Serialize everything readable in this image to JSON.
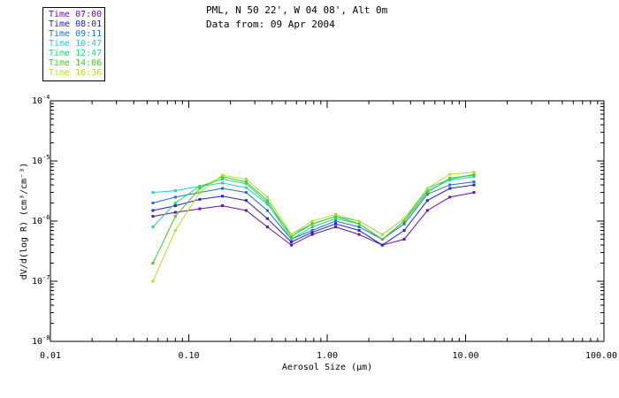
{
  "header": {
    "location": "PML, N 50 22', W 04 08', Alt 0m",
    "date_line": "Data from: 09 Apr 2004"
  },
  "legend": [
    {
      "label": "Time 07:00",
      "color": "#6a0dad"
    },
    {
      "label": "Time 08:01",
      "color": "#2222cc"
    },
    {
      "label": "Time 09:11",
      "color": "#1f6fd6"
    },
    {
      "label": "Time 10:47",
      "color": "#22ccdd"
    },
    {
      "label": "Time 12:47",
      "color": "#22dd77"
    },
    {
      "label": "Time 14:06",
      "color": "#44cc22"
    },
    {
      "label": "Time 16:36",
      "color": "#bbdd22"
    }
  ],
  "chart_data": {
    "type": "line",
    "x_scale": "log",
    "y_scale": "log",
    "xlabel": "Aerosol Size (µm)",
    "ylabel": "dV/d(log R)  (cm³/cm⁻³)",
    "xlim": [
      0.01,
      100
    ],
    "ylim": [
      1e-08,
      0.0001
    ],
    "x_ticks": [
      "0.01",
      "0.10",
      "1.00",
      "10.00",
      "100.00"
    ],
    "y_tick_exponents": [
      "-8",
      "-7",
      "-6",
      "-5",
      "-4"
    ],
    "x": [
      0.055,
      0.08,
      0.12,
      0.175,
      0.26,
      0.37,
      0.55,
      0.78,
      1.15,
      1.7,
      2.5,
      3.6,
      5.3,
      7.7,
      11.5
    ],
    "series": [
      {
        "name": "Time 07:00",
        "color": "#6a0dad",
        "values": [
          1.2e-06,
          1.4e-06,
          1.6e-06,
          1.8e-06,
          1.5e-06,
          8e-07,
          4e-07,
          6e-07,
          8e-07,
          6e-07,
          4e-07,
          5e-07,
          1.5e-06,
          2.5e-06,
          3e-06
        ]
      },
      {
        "name": "Time 08:01",
        "color": "#2222cc",
        "values": [
          1.5e-06,
          1.8e-06,
          2.3e-06,
          2.6e-06,
          2.2e-06,
          1.1e-06,
          4.5e-07,
          6.5e-07,
          9e-07,
          7e-07,
          4e-07,
          7e-07,
          2.2e-06,
          3.5e-06,
          4e-06
        ]
      },
      {
        "name": "Time 09:11",
        "color": "#1f6fd6",
        "values": [
          2e-06,
          2.5e-06,
          3e-06,
          3.5e-06,
          3e-06,
          1.5e-06,
          5e-07,
          7e-07,
          1e-06,
          8e-07,
          5e-07,
          9e-07,
          2.8e-06,
          4e-06,
          4.5e-06
        ]
      },
      {
        "name": "Time 10:47",
        "color": "#22ccdd",
        "values": [
          3e-06,
          3.2e-06,
          3.8e-06,
          4.3e-06,
          3.6e-06,
          1.9e-06,
          6e-07,
          9e-07,
          1.2e-06,
          1e-06,
          6e-07,
          1.1e-06,
          3.2e-06,
          4.8e-06,
          5.5e-06
        ]
      },
      {
        "name": "Time 12:47",
        "color": "#22dd77",
        "values": [
          8e-07,
          2e-06,
          3.8e-06,
          5e-06,
          4.2e-06,
          2e-06,
          5e-07,
          8e-07,
          1.1e-06,
          9e-07,
          5e-07,
          1e-06,
          3.5e-06,
          5e-06,
          6e-06
        ]
      },
      {
        "name": "Time 14:06",
        "color": "#44cc22",
        "values": [
          2e-07,
          1.2e-06,
          3.5e-06,
          5.5e-06,
          4.5e-06,
          2.2e-06,
          5.5e-07,
          9e-07,
          1.2e-06,
          9e-07,
          5e-07,
          1e-06,
          3e-06,
          5.2e-06,
          5.8e-06
        ]
      },
      {
        "name": "Time 16:36",
        "color": "#bbdd22",
        "values": [
          1e-07,
          7e-07,
          3e-06,
          5.8e-06,
          5e-06,
          2.5e-06,
          6e-07,
          1e-06,
          1.3e-06,
          1e-06,
          6e-07,
          1.1e-06,
          3.5e-06,
          6e-06,
          6.5e-06
        ]
      }
    ]
  }
}
